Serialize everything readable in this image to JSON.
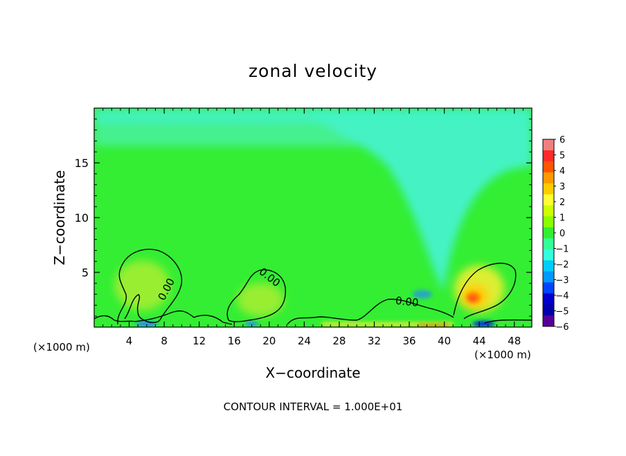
{
  "chart_data": {
    "type": "heatmap",
    "title": "zonal velocity",
    "xlabel": "X−coordinate",
    "ylabel": "Z−coordinate",
    "x_unit_left": "(×1000 m)",
    "x_unit_right": "(×1000 m)",
    "footer": "CONTOUR INTERVAL = 1.000E+01",
    "xlim": [
      0,
      50
    ],
    "ylim": [
      0,
      20
    ],
    "x_ticks": [
      4,
      8,
      12,
      16,
      20,
      24,
      28,
      32,
      36,
      40,
      44,
      48
    ],
    "x_tick_labels": [
      "4",
      "8",
      "12",
      "16",
      "20",
      "24",
      "28",
      "32",
      "36",
      "40",
      "44",
      "48"
    ],
    "y_ticks": [
      5,
      10,
      15
    ],
    "y_tick_labels": [
      "5",
      "10",
      "15"
    ],
    "contour_labels": [
      "0.00",
      "0.00",
      "0.00"
    ],
    "colorbar": {
      "min": -6,
      "max": 6,
      "labels": [
        "6",
        "5",
        "4",
        "3",
        "2",
        "1",
        "0",
        "−1",
        "−2",
        "−3",
        "−4",
        "−5",
        "−6"
      ],
      "colors": [
        "#f08080",
        "#ff2a2a",
        "#ff5500",
        "#ff9900",
        "#ffcc00",
        "#ffff33",
        "#ccff00",
        "#88ff00",
        "#33ee33",
        "#33ff99",
        "#33ffdd",
        "#00ccff",
        "#0099ff",
        "#0044ff",
        "#0000cc",
        "#0000aa",
        "#550099"
      ]
    },
    "field_colors": {
      "neg2": "#44f2c4",
      "neg1": "#44f08e",
      "zero": "#33ee33",
      "pos1": "#99ee33",
      "pos2": "#ddee33",
      "pos3": "#ffcc00",
      "pos4": "#ff7700",
      "pos5": "#ff2a2a",
      "neg3": "#2288ff",
      "neg4": "#0022ee"
    }
  }
}
